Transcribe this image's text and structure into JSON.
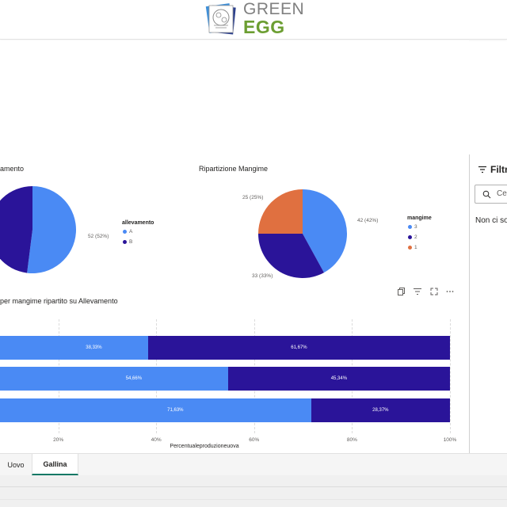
{
  "brand": {
    "line1": "GREEN",
    "line2": "EGG",
    "colors": {
      "green": "#6c9e32",
      "gray": "#808080"
    }
  },
  "colors": {
    "light_blue": "#4a8af4",
    "dark_blue": "#2a1499",
    "orange": "#e07040",
    "tab_accent": "#117865"
  },
  "visuals": {
    "pie1": {
      "title": "amento",
      "legend_title": "allevamento",
      "legend": [
        "A",
        "B"
      ],
      "slice_label": "52 (52%)"
    },
    "pie2": {
      "title": "Ripartizione Mangime",
      "legend_title": "mangime",
      "legend": [
        "3",
        "2",
        "1"
      ],
      "slice_labels": [
        "42 (42%)",
        "33 (33%)",
        "25 (25%)"
      ]
    },
    "bar": {
      "title": "per mangime ripartito su Allevamento",
      "axis_title": "Percentualeproduzioneuova",
      "ticks": [
        "20%",
        "40%",
        "60%",
        "80%",
        "100%"
      ],
      "rows": [
        {
          "a_label": "38,33%",
          "b_label": "61,67%"
        },
        {
          "a_label": "54,66%",
          "b_label": "45,34%"
        },
        {
          "a_label": "71,63%",
          "b_label": "28,37%"
        }
      ],
      "header_icons": [
        "copy-icon",
        "filter-icon",
        "focus-mode-icon",
        "more-options-icon"
      ]
    }
  },
  "chart_data": [
    {
      "type": "pie",
      "title": "",
      "legend_title": "allevamento",
      "categories": [
        "A",
        "B"
      ],
      "values": [
        52,
        48
      ],
      "colors": [
        "#4a8af4",
        "#2a1499"
      ]
    },
    {
      "type": "pie",
      "title": "Ripartizione Mangime",
      "legend_title": "mangime",
      "categories": [
        "3",
        "2",
        "1"
      ],
      "values": [
        42,
        33,
        25
      ],
      "colors": [
        "#4a8af4",
        "#2a1499",
        "#e07040"
      ]
    },
    {
      "type": "bar",
      "orientation": "horizontal",
      "stacked": true,
      "title": "",
      "xlabel": "Percentualeproduzioneuova",
      "xlim": [
        0,
        100
      ],
      "categories": [
        "",
        "",
        ""
      ],
      "series": [
        {
          "values": [
            38.33,
            54.66,
            71.63
          ],
          "color": "#4a8af4"
        },
        {
          "values": [
            61.67,
            45.34,
            28.37
          ],
          "color": "#2a1499"
        }
      ],
      "grid": true
    }
  ],
  "filters": {
    "title": "Filtri",
    "search_placeholder": "Cerca",
    "empty_text": "Non ci sono filtri"
  },
  "tabs": [
    {
      "label": "Uovo",
      "active": false
    },
    {
      "label": "Gallina",
      "active": true
    }
  ]
}
